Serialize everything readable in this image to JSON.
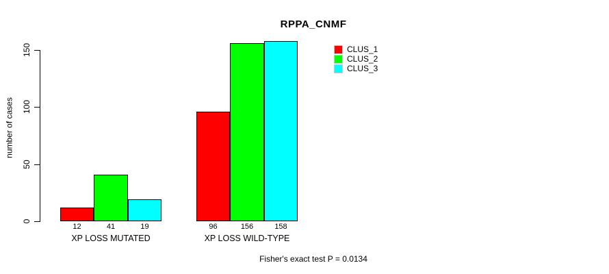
{
  "chart_data": {
    "type": "bar",
    "title": "RPPA_CNMF",
    "ylabel": "number of cases",
    "xlabel": "",
    "categories": [
      "XP LOSS MUTATED",
      "XP LOSS WILD-TYPE"
    ],
    "series": [
      {
        "name": "CLUS_1",
        "color": "#ff0000",
        "values": [
          12,
          96
        ]
      },
      {
        "name": "CLUS_2",
        "color": "#00ff00",
        "values": [
          41,
          156
        ]
      },
      {
        "name": "CLUS_3",
        "color": "#00ffff",
        "values": [
          19,
          158
        ]
      }
    ],
    "bar_value_labels": [
      [
        12,
        41,
        19
      ],
      [
        96,
        156,
        158
      ]
    ],
    "yticks": [
      0,
      50,
      100,
      150
    ],
    "ylim": [
      0,
      158
    ],
    "grid": false,
    "legend_position": "top-right",
    "legend_entries": [
      "CLUS_1",
      "CLUS_2",
      "CLUS_3"
    ],
    "footnote": "Fisher's exact test P = 0.0134",
    "colors": {
      "axis": "#000000",
      "text": "#000000",
      "background": "#ffffff"
    }
  }
}
